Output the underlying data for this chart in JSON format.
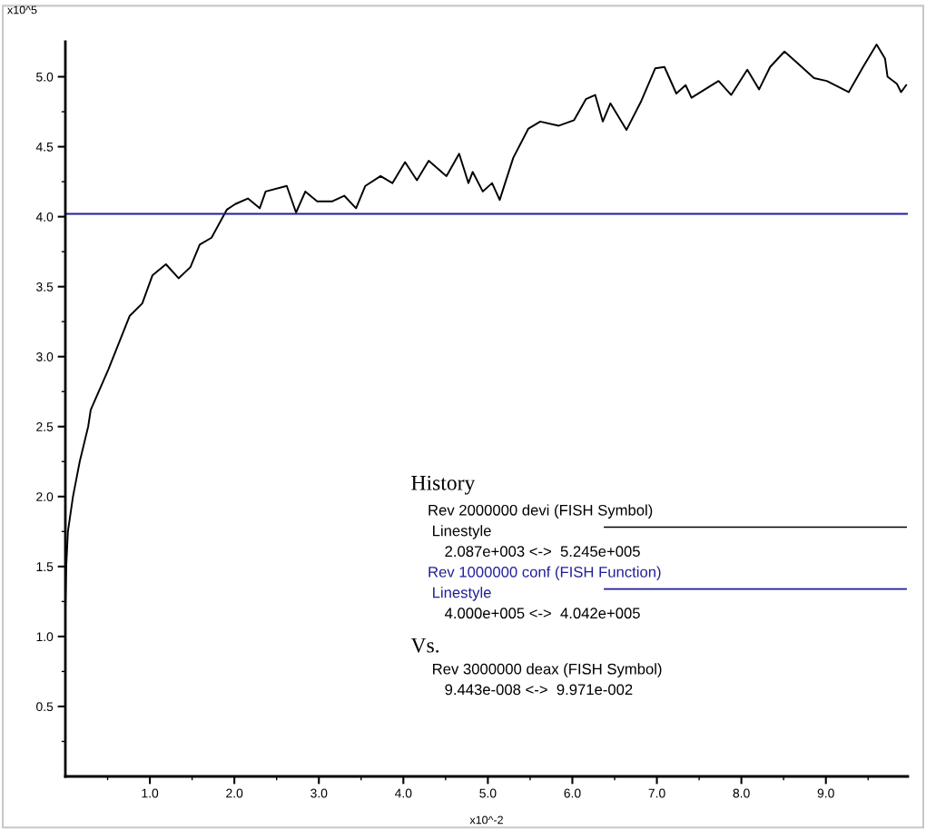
{
  "chart_data": {
    "type": "line",
    "xlabel": "x10^-2",
    "ylabel": "x10^5",
    "legend_title": "History",
    "xlim": [
      0,
      9.97
    ],
    "ylim": [
      0,
      5.25
    ],
    "xticks": [
      {
        "value": 1,
        "label": "1.0"
      },
      {
        "value": 2,
        "label": "2.0"
      },
      {
        "value": 3,
        "label": "3.0"
      },
      {
        "value": 4,
        "label": "4.0"
      },
      {
        "value": 5,
        "label": "5.0"
      },
      {
        "value": 6,
        "label": "6.0"
      },
      {
        "value": 7,
        "label": "7.0"
      },
      {
        "value": 8,
        "label": "8.0"
      },
      {
        "value": 9,
        "label": "9.0"
      }
    ],
    "yticks": [
      0.5,
      {
        "value": 1,
        "label": "1.0"
      },
      1.5,
      {
        "value": 2,
        "label": "2.0"
      },
      2.5,
      {
        "value": 3,
        "label": "3.0"
      },
      3.5,
      {
        "value": 4,
        "label": "4.0"
      },
      4.5,
      {
        "value": 5,
        "label": "5.0"
      }
    ],
    "grid": false,
    "legend": "bottom right",
    "marker": "none",
    "line_style": "solid",
    "series": [
      {
        "name": "Rev 2000000 devi (FISH Symbol)",
        "color": "#000000",
        "x": [
          0.0,
          0.01,
          0.03,
          0.09,
          0.17,
          0.27,
          0.3,
          0.51,
          0.76,
          0.91,
          1.03,
          1.19,
          1.34,
          1.48,
          1.59,
          1.73,
          1.91,
          2.01,
          2.16,
          2.3,
          2.37,
          2.62,
          2.73,
          2.84,
          2.98,
          3.16,
          3.3,
          3.44,
          3.55,
          3.73,
          3.87,
          4.02,
          4.16,
          4.3,
          4.51,
          4.66,
          4.77,
          4.82,
          4.94,
          5.05,
          5.14,
          5.3,
          5.48,
          5.62,
          5.84,
          6.02,
          6.16,
          6.27,
          6.36,
          6.45,
          6.64,
          6.81,
          6.98,
          7.09,
          7.23,
          7.34,
          7.41,
          7.73,
          7.88,
          8.07,
          8.21,
          8.34,
          8.51,
          8.64,
          8.86,
          9.01,
          9.27,
          9.44,
          9.6,
          9.7,
          9.73,
          9.84,
          9.89,
          9.95
        ],
        "values": [
          1.2,
          1.5,
          1.75,
          2.0,
          2.25,
          2.5,
          2.62,
          2.91,
          3.29,
          3.38,
          3.58,
          3.66,
          3.56,
          3.64,
          3.8,
          3.85,
          4.05,
          4.09,
          4.13,
          4.06,
          4.18,
          4.22,
          4.03,
          4.18,
          4.11,
          4.11,
          4.15,
          4.06,
          4.22,
          4.29,
          4.24,
          4.39,
          4.26,
          4.4,
          4.29,
          4.45,
          4.24,
          4.32,
          4.18,
          4.24,
          4.12,
          4.42,
          4.63,
          4.68,
          4.65,
          4.69,
          4.84,
          4.87,
          4.68,
          4.81,
          4.62,
          4.82,
          5.06,
          5.07,
          4.88,
          4.94,
          4.85,
          4.97,
          4.87,
          5.05,
          4.91,
          5.07,
          5.18,
          5.11,
          4.99,
          4.97,
          4.89,
          5.07,
          5.23,
          5.13,
          5.0,
          4.95,
          4.89,
          4.94
        ]
      },
      {
        "name": "Rev 1000000 conf (FISH Function)",
        "color": "#1f1f99",
        "x": [
          0.0,
          9.97
        ],
        "values": [
          4.02,
          4.02
        ]
      }
    ],
    "annotations": [
      "Linestyle",
      "2.087e+003 <->  5.245e+005",
      "Linestyle",
      "4.000e+005 <->  4.042e+005",
      "Vs.",
      "Rev 3000000 deax (FISH Symbol)",
      "9.443e-008 <->  9.971e-002"
    ]
  }
}
